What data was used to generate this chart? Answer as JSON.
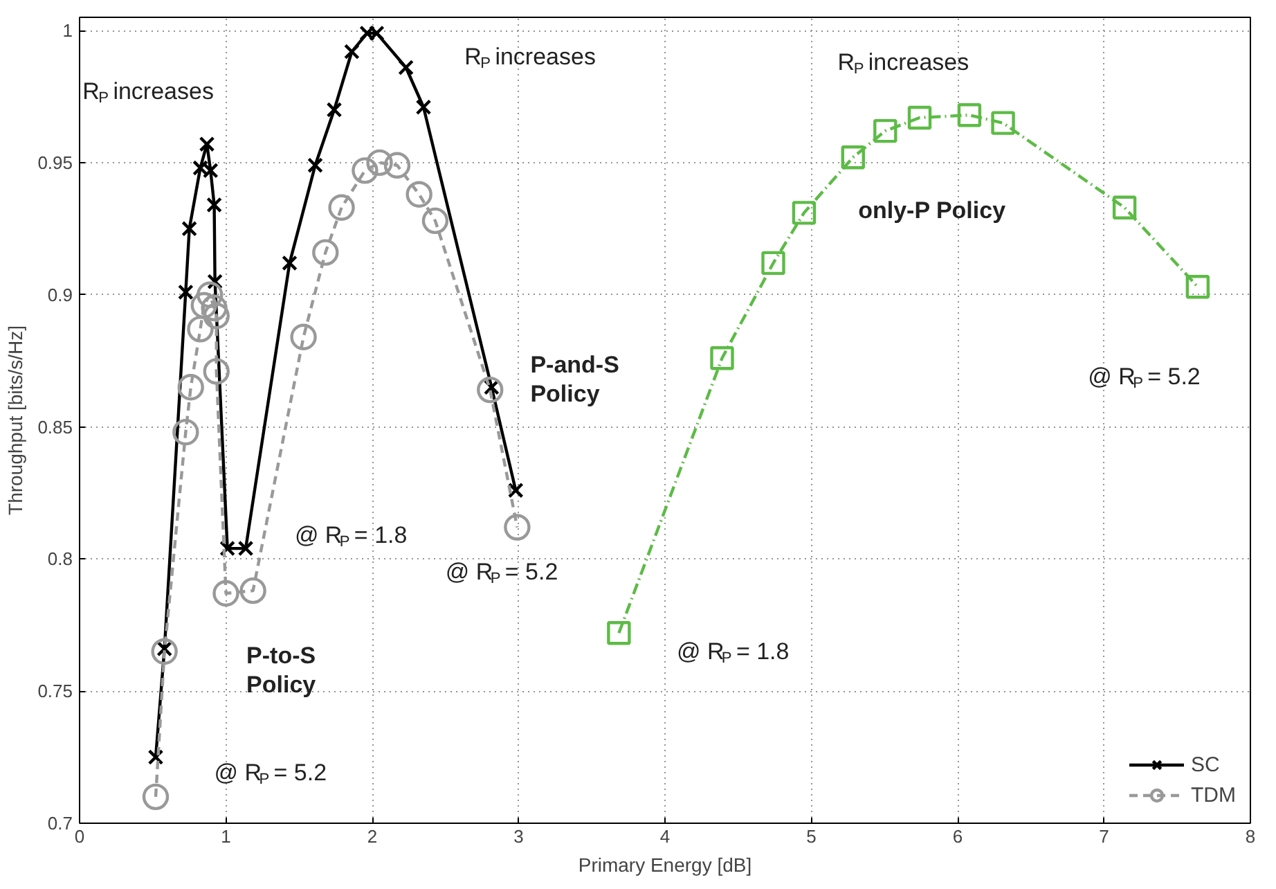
{
  "chart_data": {
    "type": "line",
    "xlabel": "Primary Energy [dB]",
    "ylabel": "Throughput [bits/s/Hz]",
    "xlim": [
      0,
      8
    ],
    "ylim": [
      0.7,
      1.005
    ],
    "xticks": [
      0,
      1,
      2,
      3,
      4,
      5,
      6,
      7,
      8
    ],
    "yticks": [
      0.7,
      0.75,
      0.8,
      0.85,
      0.9,
      0.95,
      1
    ],
    "grid": true,
    "legend": "bottom right",
    "series": [
      {
        "name": "SC",
        "color": "#000000",
        "marker": "cross",
        "line_style": "solid",
        "x": [
          0.52,
          0.58,
          0.725,
          0.75,
          0.825,
          0.87,
          0.895,
          0.92,
          0.925,
          1.01,
          1.135,
          1.435,
          1.61,
          1.74,
          1.86,
          1.965,
          2.03,
          2.23,
          2.35,
          2.815,
          2.98
        ],
        "values": [
          0.725,
          0.766,
          0.901,
          0.925,
          0.948,
          0.957,
          0.947,
          0.934,
          0.905,
          0.804,
          0.804,
          0.912,
          0.949,
          0.97,
          0.992,
          0.999,
          0.999,
          0.986,
          0.971,
          0.865,
          0.826
        ]
      },
      {
        "name": "TDM",
        "color": "#999999",
        "marker": "circle",
        "line_style": "dashed",
        "x": [
          0.52,
          0.58,
          0.725,
          0.76,
          0.825,
          0.85,
          0.89,
          0.92,
          0.935,
          0.935,
          1.0,
          1.185,
          1.53,
          1.68,
          1.79,
          1.95,
          2.05,
          2.17,
          2.32,
          2.43,
          2.805,
          2.99
        ],
        "values": [
          0.71,
          0.765,
          0.848,
          0.865,
          0.887,
          0.896,
          0.9,
          0.895,
          0.892,
          0.871,
          0.787,
          0.788,
          0.884,
          0.916,
          0.933,
          0.947,
          0.95,
          0.949,
          0.938,
          0.928,
          0.864,
          0.812
        ]
      },
      {
        "color": "#5dbb46",
        "marker": "square",
        "line_style": "dashdot",
        "x": [
          3.685,
          4.39,
          4.74,
          4.95,
          5.285,
          5.505,
          5.74,
          6.08,
          6.31,
          7.14,
          7.64
        ],
        "values": [
          0.772,
          0.876,
          0.912,
          0.931,
          0.952,
          0.962,
          0.967,
          0.968,
          0.965,
          0.933,
          0.903
        ]
      }
    ],
    "annotations": [
      "R$_{P}$increases",
      "R$_{P}$increases",
      "R$_{P}$increases",
      "P-to-S\nPolicy",
      "P-and-S\nPolicy",
      "only-P Policy",
      "@ R$_{P}$= 1.8",
      "@ R$_{P}$= 5.2",
      "@ R$_{P}$= 5.2",
      "@ R$_{P}$= 1.8",
      "@ R$_{P}$= 5.2"
    ]
  }
}
